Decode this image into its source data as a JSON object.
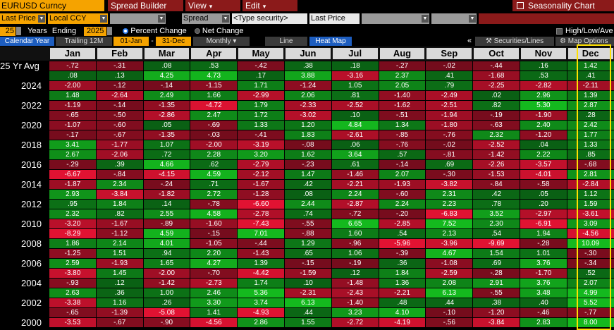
{
  "toolbar": {
    "ticker": "EURUSD Curncy",
    "menus": [
      "Spread Builder",
      "View",
      "Edit"
    ],
    "app_title": "Seasonality Chart"
  },
  "controls": {
    "field1": "Last Price",
    "field2": "Local CCY",
    "field3": "Spread",
    "field4": "<Type security>",
    "field5": "Last Price",
    "years": "25",
    "years_label": "Years",
    "ending_label": "Ending",
    "ending_year": "2025",
    "percent_change": "Percent Change",
    "net_change": "Net Change",
    "high_low_avg": "High/Low/Ave"
  },
  "tabs": {
    "calendar_year": "Calendar Year",
    "trailing": "Trailing 12M",
    "start_date": "01-Jan",
    "dash": "-",
    "end_date": "31-Dec",
    "periodicity": "Monthly",
    "line": "Line",
    "heat_map": "Heat Map",
    "collapse": "«",
    "securities": "Securities/Lines",
    "map_options": "Map Options"
  },
  "months": [
    "Jan",
    "Feb",
    "Mar",
    "Apr",
    "May",
    "Jun",
    "Jul",
    "Aug",
    "Sep",
    "Oct",
    "Nov",
    "Dec"
  ],
  "row_labels": [
    {
      "row": 0,
      "text": "25 Yr Avg"
    },
    {
      "row": 2,
      "text": "2024"
    },
    {
      "row": 4,
      "text": "2022"
    },
    {
      "row": 6,
      "text": "2020"
    },
    {
      "row": 8,
      "text": "2018"
    },
    {
      "row": 10,
      "text": "2016"
    },
    {
      "row": 12,
      "text": "2014"
    },
    {
      "row": 14,
      "text": "2012"
    },
    {
      "row": 16,
      "text": "2010"
    },
    {
      "row": 18,
      "text": "2008"
    },
    {
      "row": 20,
      "text": "2006"
    },
    {
      "row": 22,
      "text": "2004"
    },
    {
      "row": 24,
      "text": "2002"
    },
    {
      "row": 26,
      "text": "2000"
    }
  ],
  "grid": [
    [
      "-.72",
      "-.31",
      ".08",
      ".53",
      "-.42",
      ".38",
      ".18",
      "-.27",
      "-.02",
      "-.44",
      ".16",
      "1.42"
    ],
    [
      ".08",
      ".13",
      "4.25",
      "4.73",
      ".17",
      "3.88",
      "-3.16",
      "2.37",
      ".41",
      "-1.68",
      ".53",
      ".41"
    ],
    [
      "-2.00",
      "-.12",
      "-.14",
      "-1.15",
      "1.71",
      "-1.24",
      "1.05",
      "2.05",
      ".79",
      "-2.25",
      "-2.82",
      "-2.11"
    ],
    [
      "1.48",
      "-2.64",
      "2.49",
      "1.66",
      "-2.99",
      "2.06",
      ".81",
      "-1.40",
      "-2.49",
      ".02",
      "2.96",
      "1.39"
    ],
    [
      "-1.19",
      "-.14",
      "-1.35",
      "-4.72",
      "1.79",
      "-2.33",
      "-2.52",
      "-1.62",
      "-2.51",
      ".82",
      "5.30",
      "2.87"
    ],
    [
      "-.65",
      "-.50",
      "-2.86",
      "2.47",
      "1.72",
      "-3.02",
      ".10",
      "-.51",
      "-1.94",
      "-.19",
      "-1.90",
      ".28"
    ],
    [
      "-1.07",
      "-.60",
      ".05",
      "-.69",
      "1.33",
      "1.20",
      "4.84",
      "1.34",
      "-1.80",
      "-.63",
      "2.40",
      "2.42"
    ],
    [
      "-.17",
      "-.67",
      "-1.35",
      "-.03",
      "-.41",
      "1.83",
      "-2.61",
      "-.85",
      "-.76",
      "2.32",
      "-1.20",
      "1.77"
    ],
    [
      "3.41",
      "-1.77",
      "1.07",
      "-2.00",
      "-3.19",
      "-.08",
      ".06",
      "-.76",
      "-.02",
      "-2.52",
      ".04",
      "1.33"
    ],
    [
      "2.67",
      "-2.06",
      ".72",
      "2.28",
      "3.20",
      "1.62",
      "3.64",
      ".57",
      "-.81",
      "-1.42",
      "2.22",
      ".85"
    ],
    [
      "-.29",
      ".39",
      "4.66",
      ".62",
      "-2.79",
      "-.23",
      ".61",
      "-.14",
      ".69",
      "-2.26",
      "-3.57",
      "-.68"
    ],
    [
      "-6.67",
      "-.84",
      "-4.15",
      "4.59",
      "-2.12",
      "1.47",
      "-1.46",
      "2.07",
      "-.30",
      "-1.53",
      "-4.01",
      "2.81"
    ],
    [
      "-1.87",
      "2.34",
      "-.24",
      ".71",
      "-1.67",
      ".42",
      "-2.21",
      "-1.93",
      "-3.82",
      "-.84",
      "-.58",
      "-2.84"
    ],
    [
      "2.93",
      "-3.84",
      "-1.82",
      "2.72",
      "-1.28",
      ".08",
      "2.24",
      "-.60",
      "2.31",
      ".42",
      ".05",
      "1.12"
    ],
    [
      ".95",
      "1.84",
      ".14",
      "-.78",
      "-6.60",
      "2.44",
      "-2.87",
      "2.24",
      "2.23",
      ".78",
      ".20",
      "1.59"
    ],
    [
      "2.32",
      ".82",
      "2.55",
      "4.58",
      "-2.78",
      ".74",
      "-.72",
      "-.20",
      "-6.83",
      "3.52",
      "-2.97",
      "-3.61"
    ],
    [
      "-3.20",
      "-1.67",
      "-.89",
      "-1.60",
      "-7.43",
      "-.55",
      "6.65",
      "-2.85",
      "7.52",
      "2.30",
      "-6.91",
      "3.09"
    ],
    [
      "-8.29",
      "-1.12",
      "4.59",
      "-.15",
      "7.01",
      "-.88",
      "1.60",
      ".54",
      "2.13",
      ".54",
      "1.94",
      "-4.56"
    ],
    [
      "1.86",
      "2.14",
      "4.01",
      "-1.05",
      "-.44",
      "1.29",
      "-.96",
      "-5.96",
      "-3.96",
      "-9.69",
      "-.28",
      "10.09"
    ],
    [
      "-1.25",
      "1.51",
      ".94",
      "2.20",
      "-1.43",
      ".65",
      "1.06",
      "-.39",
      "4.67",
      "1.54",
      "1.01",
      "-.30"
    ],
    [
      "2.59",
      "-1.93",
      "1.65",
      "4.27",
      "1.39",
      "-.15",
      "-.19",
      ".36",
      "-1.08",
      ".69",
      "3.76",
      "-.34"
    ],
    [
      "-3.80",
      "1.45",
      "-2.00",
      "-.70",
      "-4.42",
      "-1.59",
      ".12",
      "1.84",
      "-2.59",
      "-.28",
      "-1.70",
      ".52"
    ],
    [
      "-.93",
      ".12",
      "-1.42",
      "-2.73",
      "1.74",
      ".10",
      "-1.48",
      "1.36",
      "2.08",
      "2.91",
      "3.76",
      "2.07"
    ],
    [
      "2.63",
      ".36",
      "1.00",
      "2.46",
      "5.36",
      "-2.31",
      "-2.43",
      "-2.21",
      "6.13",
      "-.55",
      "3.48",
      "4.99"
    ],
    [
      "-3.38",
      "1.16",
      ".26",
      "3.30",
      "3.74",
      "6.13",
      "-1.40",
      ".48",
      ".44",
      ".38",
      ".40",
      "5.52"
    ],
    [
      "-.65",
      "-1.39",
      "-5.08",
      "1.41",
      "-4.93",
      ".44",
      "3.23",
      "4.10",
      "-.10",
      "-1.20",
      "-.46",
      "-.77"
    ],
    [
      "-3.53",
      "-.67",
      "-.90",
      "-4.56",
      "2.86",
      "1.55",
      "-2.72",
      "-4.19",
      "-.56",
      "-3.84",
      "2.83",
      "8.00"
    ]
  ]
}
